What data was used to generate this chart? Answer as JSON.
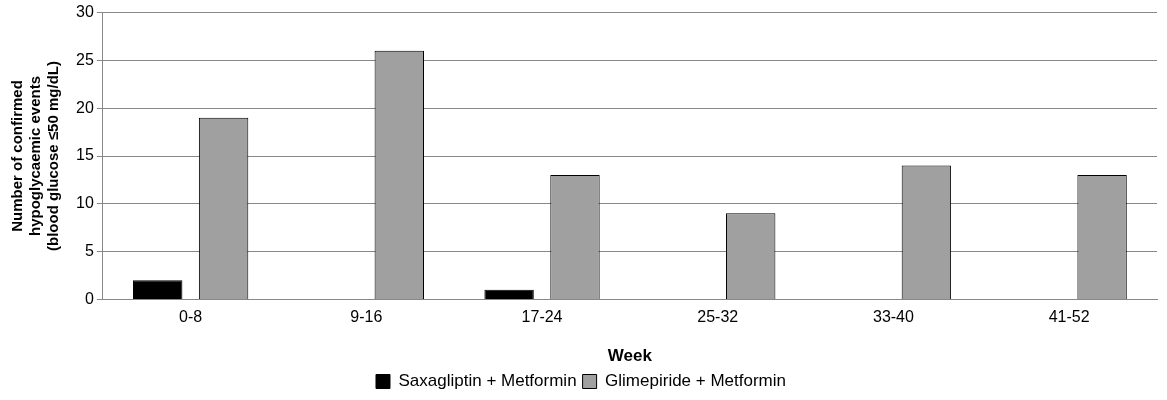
{
  "chart_data": {
    "type": "bar",
    "xlabel": "Week",
    "ylabel": "Number of confirmed hypoglycaemic events (blood glucose ≤50 mg/dL)",
    "categories": [
      "0-8",
      "9-16",
      "17-24",
      "25-32",
      "33-40",
      "41-52"
    ],
    "series": [
      {
        "name": "Saxagliptin + Metformin",
        "color": "#000000",
        "values": [
          2,
          0,
          1,
          0,
          0,
          0
        ]
      },
      {
        "name": "Glimepiride + Metformin",
        "color": "#a0a0a0",
        "values": [
          19,
          26,
          13,
          9,
          14,
          13
        ]
      }
    ],
    "ylim": [
      0,
      30
    ],
    "yticks": [
      0,
      5,
      10,
      15,
      20,
      25,
      30
    ],
    "grid": "y",
    "legend": "bottom"
  }
}
